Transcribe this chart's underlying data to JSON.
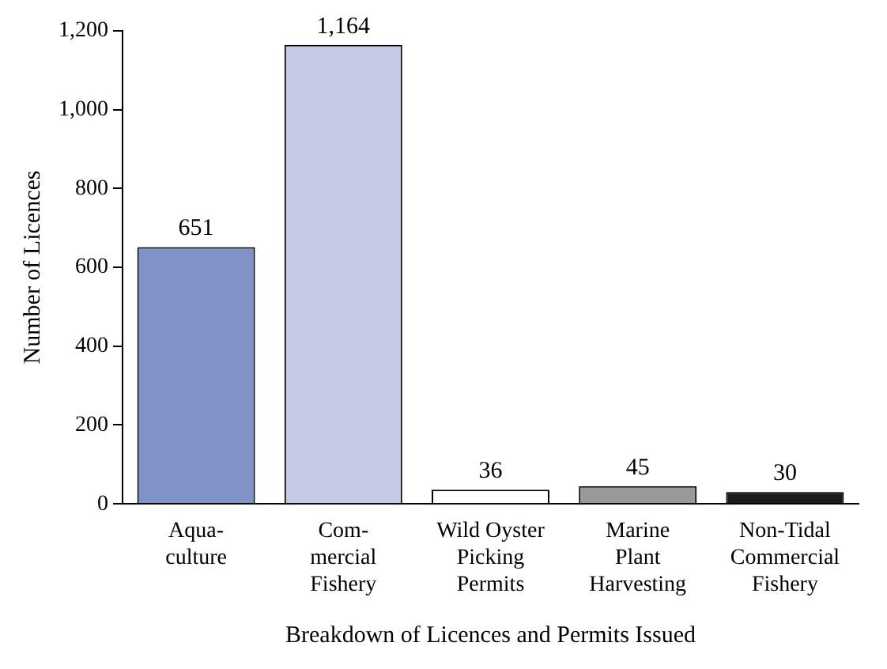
{
  "chart_data": {
    "type": "bar",
    "xlabel": "Breakdown of Licences and Permits Issued",
    "ylabel": "Number of Licences",
    "categories": [
      "Aqua-\nculture",
      "Com-\nmercial\nFishery",
      "Wild Oyster\nPicking\nPermits",
      "Marine\nPlant\nHarvesting",
      "Non-Tidal\nCommercial\nFishery"
    ],
    "values": [
      651,
      1164,
      36,
      45,
      30
    ],
    "colors": [
      "#7f93c6",
      "#c5cae6",
      "#ffffff",
      "#999999",
      "#1a1a1a"
    ],
    "value_labels": [
      "651",
      "1,164",
      "36",
      "45",
      "30"
    ],
    "ylim": [
      0,
      1200
    ],
    "yticks": [
      0,
      200,
      400,
      600,
      800,
      {
        "value": 1000,
        "label": "1,000"
      },
      {
        "value": 1200,
        "label": "1,200"
      }
    ],
    "grid": false,
    "legend": false
  }
}
